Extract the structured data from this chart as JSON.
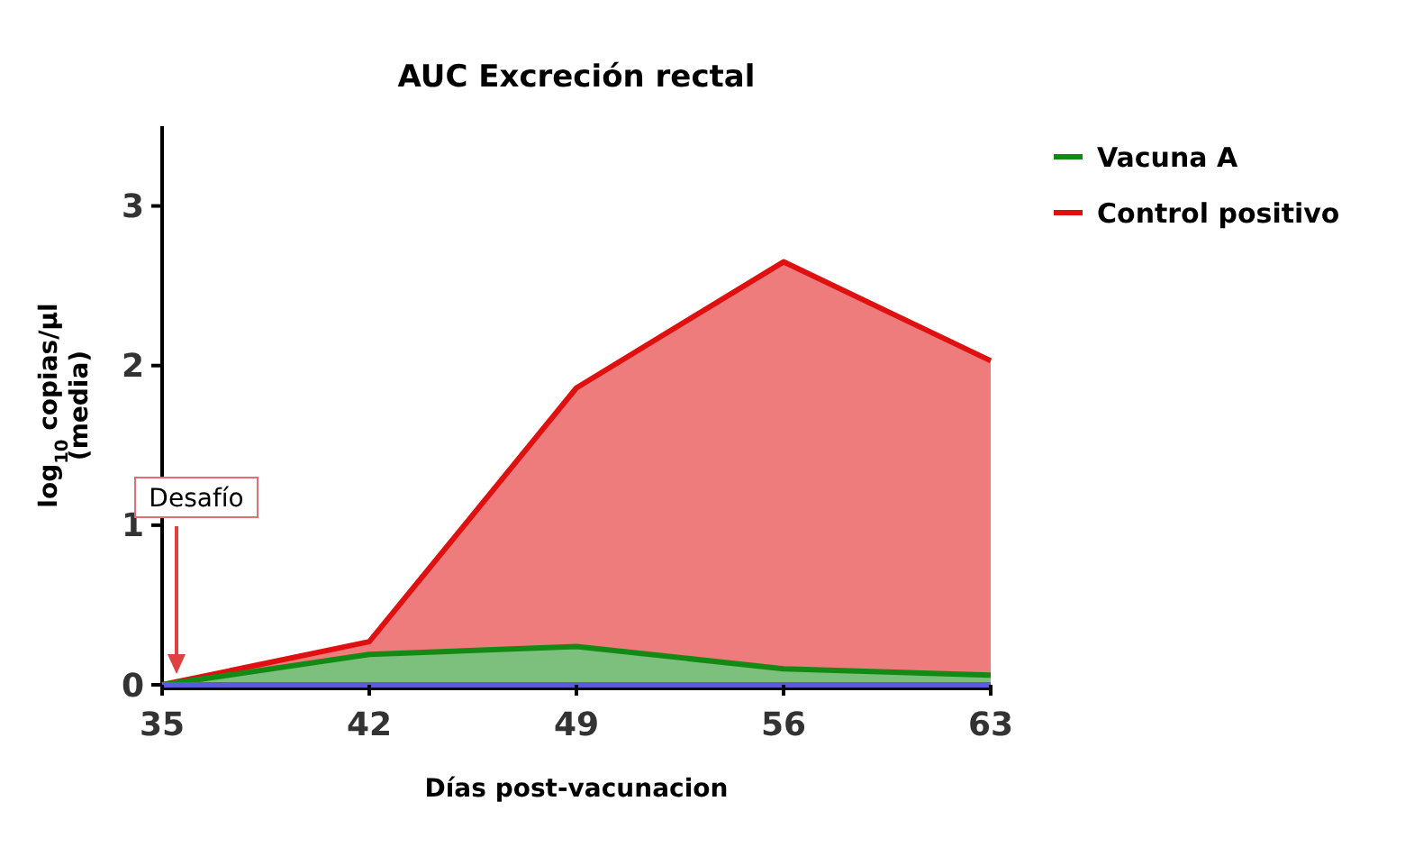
{
  "chart_data": {
    "type": "area",
    "title": "AUC Excreción rectal",
    "xlabel": "Días post-vacunacion",
    "ylabel": "log$_{10}$ copias/µl\n(media)",
    "x": [
      35,
      42,
      49,
      56,
      63
    ],
    "xlim": [
      35,
      63
    ],
    "xticks": [
      35,
      42,
      49,
      56,
      63
    ],
    "ylim": [
      0,
      3.5
    ],
    "yticks": [
      0,
      1,
      2,
      3
    ],
    "grid": false,
    "legend": "top right",
    "series": [
      {
        "name": "Control positivo",
        "color": "#e01010",
        "values": [
          0,
          0.27,
          1.86,
          2.65,
          2.03
        ]
      },
      {
        "name": "Vacuna A",
        "color": "#138a13",
        "values": [
          0,
          0.19,
          0.24,
          0.1,
          0.06
        ]
      },
      {
        "type": "line",
        "color": "#5b5bdb",
        "values": [
          0,
          0,
          0,
          0,
          0
        ]
      }
    ],
    "annotations": [
      "Desafío"
    ]
  }
}
